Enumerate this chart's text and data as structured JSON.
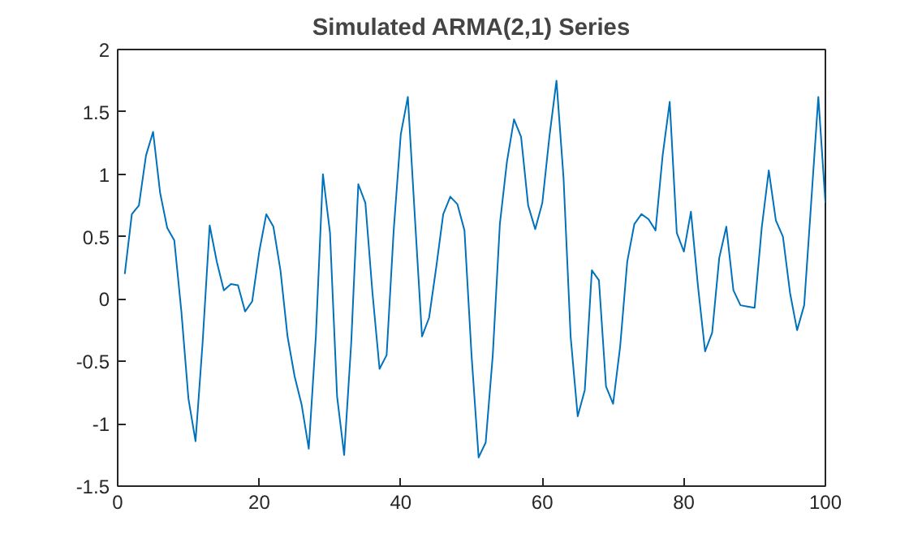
{
  "chart_data": {
    "type": "line",
    "title": "Simulated ARMA(2,1) Series",
    "x": [
      1,
      2,
      3,
      4,
      5,
      6,
      7,
      8,
      9,
      10,
      11,
      12,
      13,
      14,
      15,
      16,
      17,
      18,
      19,
      20,
      21,
      22,
      23,
      24,
      25,
      26,
      27,
      28,
      29,
      30,
      31,
      32,
      33,
      34,
      35,
      36,
      37,
      38,
      39,
      40,
      41,
      42,
      43,
      44,
      45,
      46,
      47,
      48,
      49,
      50,
      51,
      52,
      53,
      54,
      55,
      56,
      57,
      58,
      59,
      60,
      61,
      62,
      63,
      64,
      65,
      66,
      67,
      68,
      69,
      70,
      71,
      72,
      73,
      74,
      75,
      76,
      77,
      78,
      79,
      80,
      81,
      82,
      83,
      84,
      85,
      86,
      87,
      88,
      89,
      90,
      91,
      92,
      93,
      94,
      95,
      96,
      97,
      98,
      99,
      100
    ],
    "series": [
      {
        "color": "#0072bd",
        "values": [
          0.2,
          0.68,
          0.75,
          1.15,
          1.34,
          0.85,
          0.57,
          0.47,
          -0.1,
          -0.8,
          -1.14,
          -0.35,
          0.59,
          0.3,
          0.07,
          0.12,
          0.11,
          -0.1,
          -0.02,
          0.38,
          0.68,
          0.58,
          0.23,
          -0.3,
          -0.62,
          -0.85,
          -1.2,
          -0.3,
          1.0,
          0.53,
          -0.78,
          -1.25,
          -0.35,
          0.92,
          0.77,
          0.05,
          -0.56,
          -0.45,
          0.55,
          1.32,
          1.62,
          0.65,
          -0.3,
          -0.15,
          0.25,
          0.68,
          0.82,
          0.76,
          0.55,
          -0.45,
          -1.27,
          -1.15,
          -0.45,
          0.6,
          1.1,
          1.44,
          1.3,
          0.75,
          0.56,
          0.77,
          1.3,
          1.75,
          0.97,
          -0.3,
          -0.94,
          -0.73,
          0.23,
          0.15,
          -0.7,
          -0.84,
          -0.38,
          0.3,
          0.6,
          0.68,
          0.64,
          0.55,
          1.15,
          1.58,
          0.53,
          0.38,
          0.7,
          0.1,
          -0.42,
          -0.27,
          0.33,
          0.58,
          0.07,
          -0.05,
          -0.06,
          -0.07,
          0.57,
          1.03,
          0.63,
          0.5,
          0.05,
          -0.25,
          -0.05,
          0.78,
          1.62,
          0.77
        ]
      }
    ],
    "xlim": [
      0,
      100
    ],
    "ylim": [
      -1.5,
      2
    ],
    "xticks": [
      0,
      20,
      40,
      60,
      80,
      100
    ],
    "yticks": [
      -1.5,
      -1,
      -0.5,
      0,
      0.5,
      1,
      1.5,
      2
    ],
    "grid": false,
    "marker": "none",
    "line_style": "solid"
  }
}
